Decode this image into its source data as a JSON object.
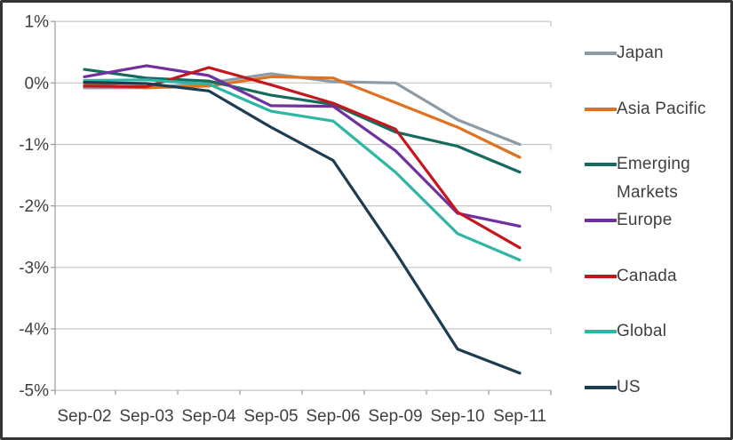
{
  "figure": {
    "background": "#ffffff",
    "border_color": "#343434",
    "gridline_color": "#c6c6c6",
    "axis_color": "#9a9a9a",
    "label_color": "#3f3f3f"
  },
  "chart_data": {
    "type": "line",
    "title": "",
    "xlabel": "",
    "ylabel": "",
    "categories": [
      "Sep-02",
      "Sep-03",
      "Sep-04",
      "Sep-05",
      "Sep-06",
      "Sep-09",
      "Sep-10",
      "Sep-11"
    ],
    "y_ticks": [
      1,
      0,
      -1,
      -2,
      -3,
      -4,
      -5
    ],
    "y_tick_labels": [
      "1%",
      "0%",
      "-1%",
      "-2%",
      "-3%",
      "-4%",
      "-5%"
    ],
    "ylim": [
      -5,
      1
    ],
    "grid": true,
    "legend_position": "right",
    "series": [
      {
        "name": "Japan",
        "color": "#8d9ba7",
        "values": [
          -0.08,
          -0.08,
          0.0,
          0.15,
          0.02,
          0.0,
          -0.6,
          -1.0
        ]
      },
      {
        "name": "Asia Pacific",
        "color": "#e0711e",
        "values": [
          -0.02,
          -0.08,
          -0.05,
          0.1,
          0.08,
          -0.32,
          -0.72,
          -1.21
        ]
      },
      {
        "name": "Emerging Markets",
        "color": "#156b5e",
        "values": [
          0.22,
          0.08,
          0.03,
          -0.2,
          -0.35,
          -0.8,
          -1.03,
          -1.45
        ]
      },
      {
        "name": "Europe",
        "color": "#7030a0",
        "values": [
          0.1,
          0.28,
          0.12,
          -0.37,
          -0.38,
          -1.1,
          -2.12,
          -2.33
        ]
      },
      {
        "name": "Canada",
        "color": "#c4161c",
        "values": [
          -0.05,
          -0.06,
          0.25,
          -0.03,
          -0.33,
          -0.75,
          -2.1,
          -2.68
        ]
      },
      {
        "name": "Global",
        "color": "#2eb5a4",
        "values": [
          0.04,
          0.05,
          -0.02,
          -0.46,
          -0.62,
          -1.45,
          -2.45,
          -2.88
        ]
      },
      {
        "name": "US",
        "color": "#1b3c51",
        "values": [
          0.01,
          -0.01,
          -0.13,
          -0.72,
          -1.26,
          -2.75,
          -4.33,
          -4.72
        ]
      }
    ]
  }
}
